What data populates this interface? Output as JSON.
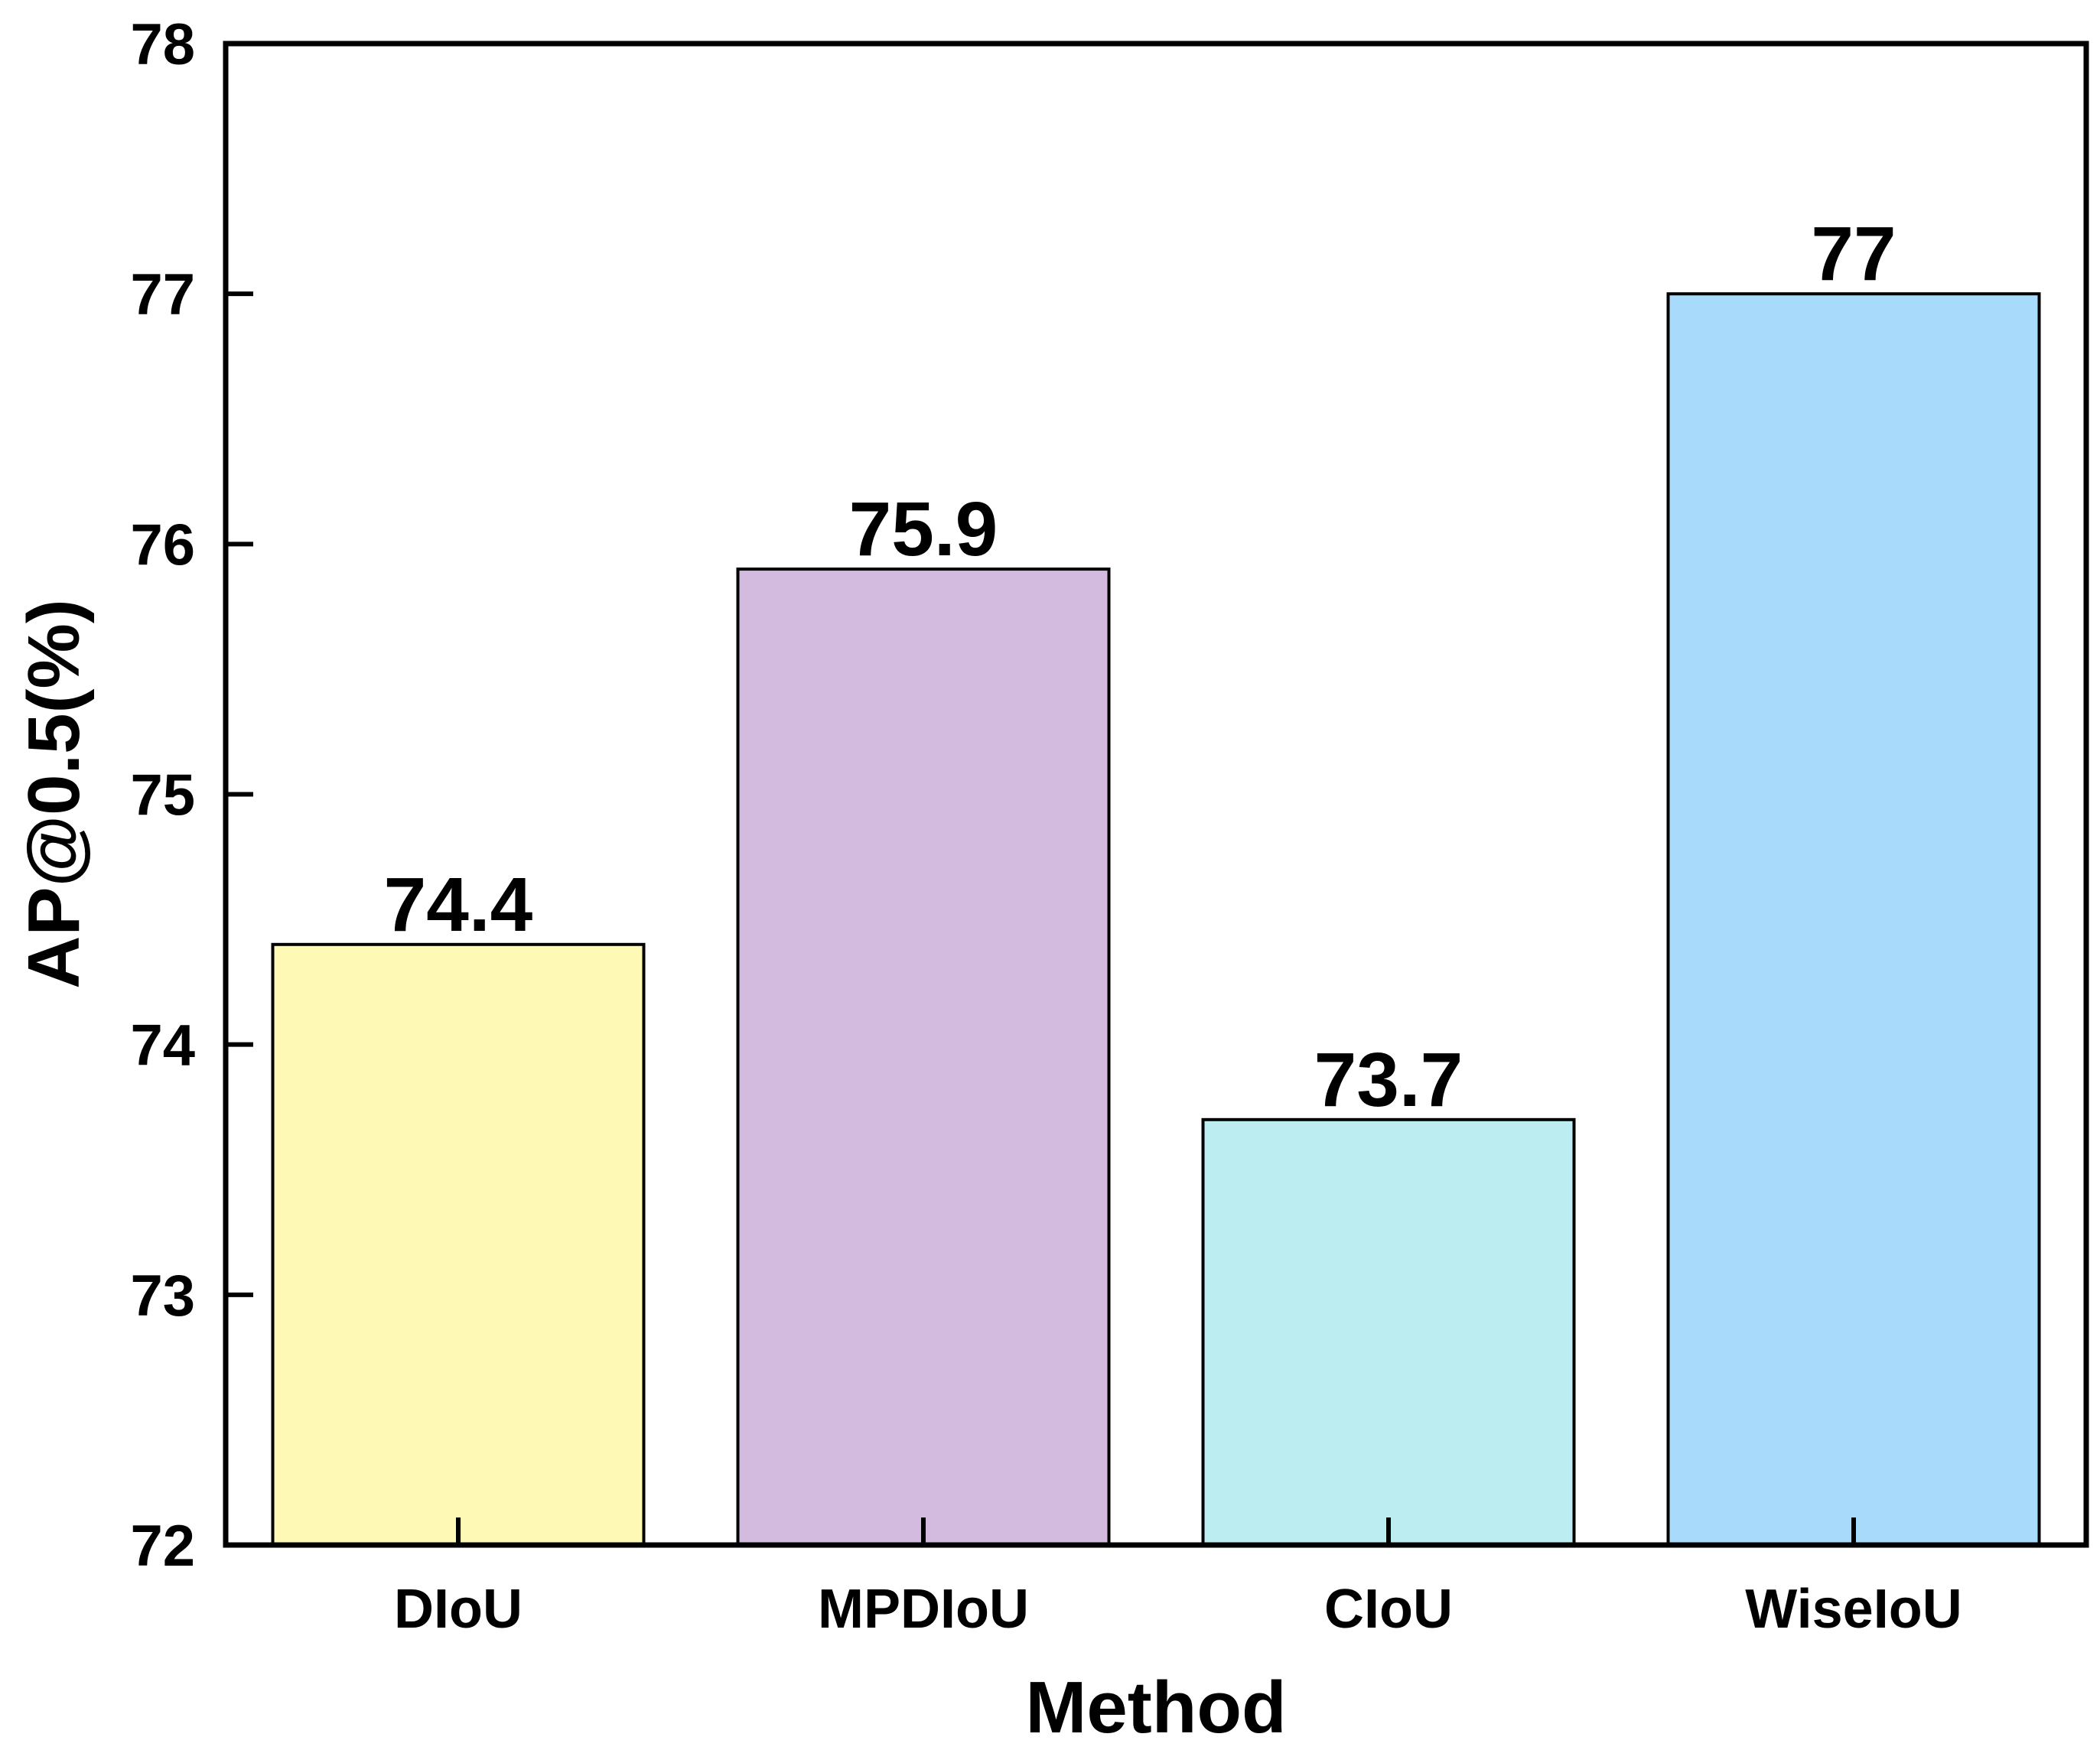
{
  "chart_data": {
    "type": "bar",
    "categories": [
      "DIoU",
      "MPDIoU",
      "CIoU",
      "WiseIoU"
    ],
    "values": [
      74.4,
      75.9,
      73.7,
      77
    ],
    "value_labels": [
      "74.4",
      "75.9",
      "73.7",
      "77"
    ],
    "colors": [
      "#fefab6",
      "#d2bbdf",
      "#bbedf1",
      "#a8dbfb"
    ],
    "xlabel": "Method",
    "ylabel": "AP@0.5(%)",
    "ylim": [
      72,
      78
    ],
    "yticks": [
      "72",
      "73",
      "74",
      "75",
      "76",
      "77",
      "78"
    ],
    "grid": false
  }
}
